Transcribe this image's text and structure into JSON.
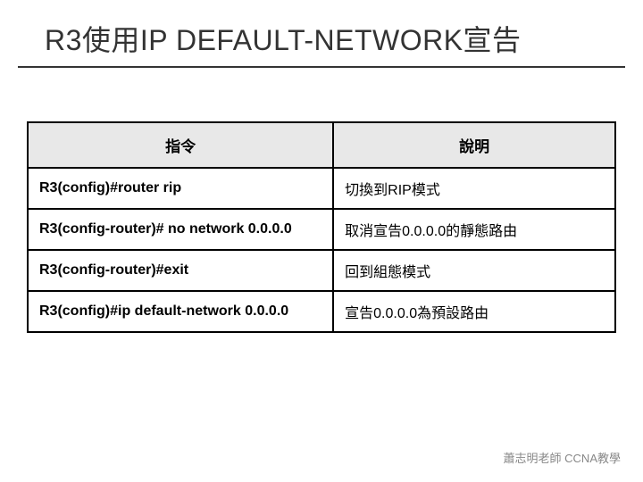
{
  "title": "R3使用IP DEFAULT-NETWORK宣告",
  "table": {
    "headers": {
      "cmd": "指令",
      "desc": "說明"
    },
    "rows": [
      {
        "cmd": "R3(config)#router rip",
        "desc": "切換到RIP模式"
      },
      {
        "cmd": "R3(config-router)# no  network  0.0.0.0",
        "desc": "取消宣告0.0.0.0的靜態路由"
      },
      {
        "cmd": "R3(config-router)#exit",
        "desc": "回到組態模式"
      },
      {
        "cmd": "R3(config)#ip default-network  0.0.0.0",
        "desc": "宣告0.0.0.0為預設路由"
      }
    ]
  },
  "footer": "蕭志明老師 CCNA教學",
  "colors": {
    "header_bg": "#e8e8e8",
    "border": "#000000",
    "text": "#333333",
    "footer_text": "#888888"
  }
}
